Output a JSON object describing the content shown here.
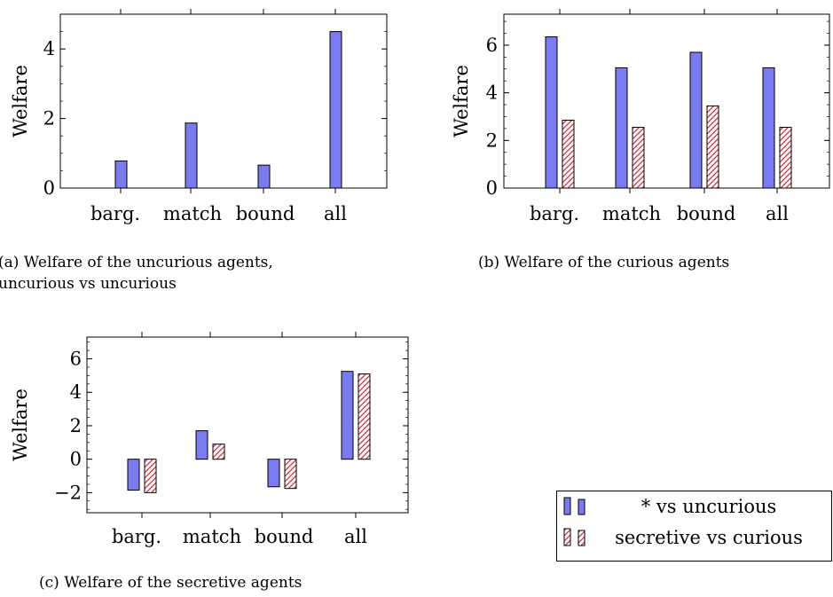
{
  "colors": {
    "blue": "#7b7bf0",
    "red": "#e8202a"
  },
  "chart_data": [
    {
      "type": "bar",
      "ylabel": "Welfare",
      "xlabel": "",
      "categories": [
        "barg.",
        "match",
        "bound",
        "all"
      ],
      "ylim": [
        0,
        5
      ],
      "yticks": [
        0,
        2,
        4
      ],
      "series": [
        {
          "values": [
            0.78,
            1.87,
            0.66,
            4.5
          ]
        }
      ],
      "caption": "(a) Welfare of the uncurious agents,\nuncurious vs uncurious"
    },
    {
      "type": "bar",
      "ylabel": "Welfare",
      "xlabel": "",
      "categories": [
        "barg.",
        "match",
        "bound",
        "all"
      ],
      "ylim": [
        0,
        7.3
      ],
      "yticks": [
        0,
        2,
        4,
        6
      ],
      "series": [
        {
          "values": [
            6.35,
            5.05,
            5.7,
            5.05
          ]
        },
        {
          "values": [
            2.85,
            2.55,
            3.45,
            2.55
          ]
        }
      ],
      "caption": "(b) Welfare of the curious agents"
    },
    {
      "type": "bar",
      "ylabel": "Welfare",
      "xlabel": "",
      "categories": [
        "barg.",
        "match",
        "bound",
        "all"
      ],
      "ylim": [
        -3.2,
        7.3
      ],
      "yticks": [
        -2,
        0,
        2,
        4,
        6
      ],
      "series": [
        {
          "values": [
            -1.85,
            1.7,
            -1.65,
            5.25
          ]
        },
        {
          "values": [
            -2.0,
            0.9,
            -1.75,
            5.1
          ]
        }
      ],
      "caption": "(c) Welfare of the secretive agents"
    }
  ],
  "legend": {
    "entries": [
      "* vs uncurious",
      "secretive vs curious"
    ]
  }
}
